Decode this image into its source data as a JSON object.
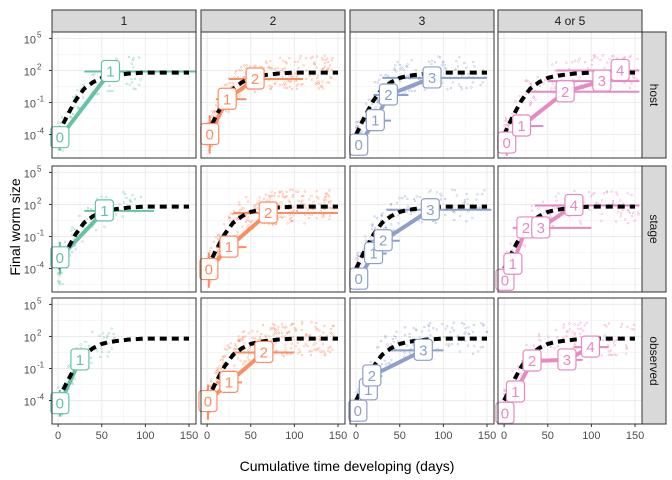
{
  "chart_data": {
    "type": "scatter",
    "title": "",
    "xlabel": "Cumulative time developing (days)",
    "ylabel": "Final worm size",
    "xlim": [
      -7,
      158
    ],
    "ylim_log10": [
      -6.2,
      5.6
    ],
    "y_scale": "log10",
    "grid": true,
    "facet_columns": [
      "1",
      "2",
      "3",
      "4 or 5"
    ],
    "facet_rows": [
      "host",
      "stage",
      "observed"
    ],
    "x_ticks": [
      0,
      50,
      100,
      150
    ],
    "x_tick_labels": [
      "0",
      "50",
      "100",
      "150"
    ],
    "y_ticks_log10": [
      -4,
      -1,
      2,
      5
    ],
    "y_tick_labels": [
      [
        "10",
        "-4"
      ],
      [
        "10",
        "-1"
      ],
      [
        "10",
        "2"
      ],
      [
        "10",
        "5"
      ]
    ],
    "column_colors": [
      "#66c2a5",
      "#fc8d62",
      "#8da0cb",
      "#e78ac3"
    ],
    "reference_curve_color": "#000000",
    "reference_curve": {
      "x": [
        0,
        10,
        20,
        30,
        40,
        50,
        60,
        70,
        80,
        90,
        100,
        120,
        140,
        150
      ],
      "log10_y": [
        -4.0,
        -2.3,
        -0.8,
        0.3,
        0.9,
        1.3,
        1.5,
        1.6,
        1.7,
        1.75,
        1.8,
        1.8,
        1.8,
        1.8
      ]
    },
    "panels": {
      "host": [
        {
          "stages": [
            {
              "label": "0",
              "x": 2,
              "log10_y": -4.3,
              "x_lo": 0,
              "x_hi": 5,
              "y_lo": -5.5,
              "y_hi": -3.2
            },
            {
              "label": "1",
              "x": 60,
              "log10_y": 1.9,
              "x_lo": 30,
              "x_hi": 160,
              "y_lo": 1.9,
              "y_hi": 1.9
            }
          ],
          "points_x_range": [
            0,
            95
          ]
        },
        {
          "stages": [
            {
              "label": "0",
              "x": 3,
              "log10_y": -4.0,
              "x_lo": 0,
              "x_hi": 8,
              "y_lo": -5.8,
              "y_hi": -2.2
            },
            {
              "label": "1",
              "x": 23,
              "log10_y": -0.7,
              "x_lo": 10,
              "x_hi": 45,
              "y_lo": -0.7,
              "y_hi": -0.7
            },
            {
              "label": "2",
              "x": 55,
              "log10_y": 1.2,
              "x_lo": 25,
              "x_hi": 110,
              "y_lo": 1.2,
              "y_hi": 1.2
            }
          ],
          "points_x_range": [
            0,
            145
          ]
        },
        {
          "stages": [
            {
              "label": "0",
              "x": 3,
              "log10_y": -5.0,
              "x_lo": 0,
              "x_hi": 10,
              "y_lo": -6.0,
              "y_hi": -3.5
            },
            {
              "label": "1",
              "x": 22,
              "log10_y": -2.7,
              "x_lo": 5,
              "x_hi": 40,
              "y_lo": -2.7,
              "y_hi": -2.7
            },
            {
              "label": "2",
              "x": 37,
              "log10_y": -0.3,
              "x_lo": 20,
              "x_hi": 60,
              "y_lo": -0.3,
              "y_hi": -0.3
            },
            {
              "label": "3",
              "x": 87,
              "log10_y": 1.3,
              "x_lo": 30,
              "x_hi": 150,
              "y_lo": 1.3,
              "y_hi": 1.3
            }
          ],
          "points_x_range": [
            0,
            150
          ]
        },
        {
          "stages": [
            {
              "label": "0",
              "x": 3,
              "log10_y": -4.8,
              "x_lo": 0,
              "x_hi": 10,
              "y_lo": -6.0,
              "y_hi": -3.5
            },
            {
              "label": "1",
              "x": 20,
              "log10_y": -3.2,
              "x_lo": 10,
              "x_hi": 45,
              "y_lo": -3.2,
              "y_hi": -3.2
            },
            {
              "label": "2",
              "x": 70,
              "log10_y": 0.0,
              "x_lo": 30,
              "x_hi": 155,
              "y_lo": 0.0,
              "y_hi": 0.0
            },
            {
              "label": "3",
              "x": 112,
              "log10_y": 1.0,
              "x_lo": 50,
              "x_hi": 155,
              "y_lo": 1.0,
              "y_hi": 1.0
            },
            {
              "label": "4",
              "x": 133,
              "log10_y": 2.0,
              "x_lo": 60,
              "x_hi": 155,
              "y_lo": 2.0,
              "y_hi": 2.0
            }
          ],
          "points_x_range": [
            0,
            155
          ]
        }
      ],
      "stage": [
        {
          "stages": [
            {
              "label": "0",
              "x": 2,
              "log10_y": -3.0,
              "x_lo": 0,
              "x_hi": 5,
              "y_lo": -4.5,
              "y_hi": -1.5
            },
            {
              "label": "1",
              "x": 53,
              "log10_y": 1.4,
              "x_lo": 30,
              "x_hi": 110,
              "y_lo": 1.4,
              "y_hi": 1.4
            }
          ],
          "points_x_range": [
            0,
            95
          ]
        },
        {
          "stages": [
            {
              "label": "0",
              "x": 2,
              "log10_y": -4.1,
              "x_lo": 0,
              "x_hi": 8,
              "y_lo": -5.8,
              "y_hi": -2.5
            },
            {
              "label": "1",
              "x": 25,
              "log10_y": -2.0,
              "x_lo": 10,
              "x_hi": 45,
              "y_lo": -2.0,
              "y_hi": -2.0
            },
            {
              "label": "2",
              "x": 70,
              "log10_y": 1.2,
              "x_lo": 30,
              "x_hi": 150,
              "y_lo": 1.2,
              "y_hi": 1.2
            }
          ],
          "points_x_range": [
            0,
            145
          ]
        },
        {
          "stages": [
            {
              "label": "0",
              "x": 3,
              "log10_y": -5.0,
              "x_lo": 0,
              "x_hi": 10,
              "y_lo": -6.0,
              "y_hi": -3.5
            },
            {
              "label": "1",
              "x": 20,
              "log10_y": -2.6,
              "x_lo": 5,
              "x_hi": 35,
              "y_lo": -2.6,
              "y_hi": -2.6
            },
            {
              "label": "2",
              "x": 31,
              "log10_y": -1.4,
              "x_lo": 15,
              "x_hi": 50,
              "y_lo": -1.4,
              "y_hi": -1.4
            },
            {
              "label": "3",
              "x": 85,
              "log10_y": 1.5,
              "x_lo": 35,
              "x_hi": 155,
              "y_lo": 1.5,
              "y_hi": 1.5
            }
          ],
          "points_x_range": [
            0,
            150
          ]
        },
        {
          "stages": [
            {
              "label": "0",
              "x": 1,
              "log10_y": -5.1,
              "x_lo": 0,
              "x_hi": 5,
              "y_lo": -6.0,
              "y_hi": -4.0
            },
            {
              "label": "1",
              "x": 10,
              "log10_y": -3.6,
              "x_lo": 0,
              "x_hi": 20,
              "y_lo": -3.6,
              "y_hi": -3.6
            },
            {
              "label": "2",
              "x": 25,
              "log10_y": -0.2,
              "x_lo": 10,
              "x_hi": 45,
              "y_lo": -0.2,
              "y_hi": -0.2
            },
            {
              "label": "3",
              "x": 42,
              "log10_y": -0.2,
              "x_lo": 25,
              "x_hi": 100,
              "y_lo": -0.2,
              "y_hi": -0.2
            },
            {
              "label": "4",
              "x": 80,
              "log10_y": 1.9,
              "x_lo": 35,
              "x_hi": 155,
              "y_lo": 1.9,
              "y_hi": 1.9
            }
          ],
          "points_x_range": [
            0,
            155
          ]
        }
      ],
      "observed": [
        {
          "stages": [
            {
              "label": "0",
              "x": 2,
              "log10_y": -4.3,
              "x_lo": 0,
              "x_hi": 5,
              "y_lo": -5.5,
              "y_hi": -3.0
            },
            {
              "label": "1",
              "x": 25,
              "log10_y": -0.2,
              "x_lo": 15,
              "x_hi": 35,
              "y_lo": -1.0,
              "y_hi": 0.6
            }
          ],
          "points_x_range": [
            0,
            65
          ]
        },
        {
          "stages": [
            {
              "label": "0",
              "x": 1,
              "log10_y": -4.1,
              "x_lo": 0,
              "x_hi": 8,
              "y_lo": -5.8,
              "y_hi": -2.5
            },
            {
              "label": "1",
              "x": 25,
              "log10_y": -2.3,
              "x_lo": 10,
              "x_hi": 40,
              "y_lo": -2.3,
              "y_hi": -2.3
            },
            {
              "label": "2",
              "x": 65,
              "log10_y": 0.5,
              "x_lo": 30,
              "x_hi": 100,
              "y_lo": 0.5,
              "y_hi": 0.5
            }
          ],
          "points_x_range": [
            0,
            145
          ]
        },
        {
          "stages": [
            {
              "label": "0",
              "x": 2,
              "log10_y": -5.0,
              "x_lo": 0,
              "x_hi": 10,
              "y_lo": -6.0,
              "y_hi": -3.5
            },
            {
              "label": "1",
              "x": 14,
              "log10_y": -3.0,
              "x_lo": 5,
              "x_hi": 25,
              "y_lo": -3.0,
              "y_hi": -3.0
            },
            {
              "label": "2",
              "x": 18,
              "log10_y": -1.7,
              "x_lo": 8,
              "x_hi": 30,
              "y_lo": -1.7,
              "y_hi": -1.7
            },
            {
              "label": "3",
              "x": 77,
              "log10_y": 0.7,
              "x_lo": 40,
              "x_hi": 100,
              "y_lo": 0.7,
              "y_hi": 0.7
            }
          ],
          "points_x_range": [
            0,
            150
          ]
        },
        {
          "stages": [
            {
              "label": "0",
              "x": 1,
              "log10_y": -5.2,
              "x_lo": 0,
              "x_hi": 5,
              "y_lo": -6.0,
              "y_hi": -4.2
            },
            {
              "label": "1",
              "x": 13,
              "log10_y": -3.2,
              "x_lo": 5,
              "x_hi": 20,
              "y_lo": -3.2,
              "y_hi": -3.2
            },
            {
              "label": "2",
              "x": 32,
              "log10_y": -0.3,
              "x_lo": 20,
              "x_hi": 45,
              "y_lo": -0.3,
              "y_hi": -0.3
            },
            {
              "label": "3",
              "x": 72,
              "log10_y": -0.2,
              "x_lo": 50,
              "x_hi": 90,
              "y_lo": -0.2,
              "y_hi": -0.2
            },
            {
              "label": "4",
              "x": 99,
              "log10_y": 1.0,
              "x_lo": 80,
              "x_hi": 120,
              "y_lo": 1.0,
              "y_hi": 1.0
            }
          ],
          "points_x_range": [
            0,
            150
          ]
        }
      ]
    }
  }
}
